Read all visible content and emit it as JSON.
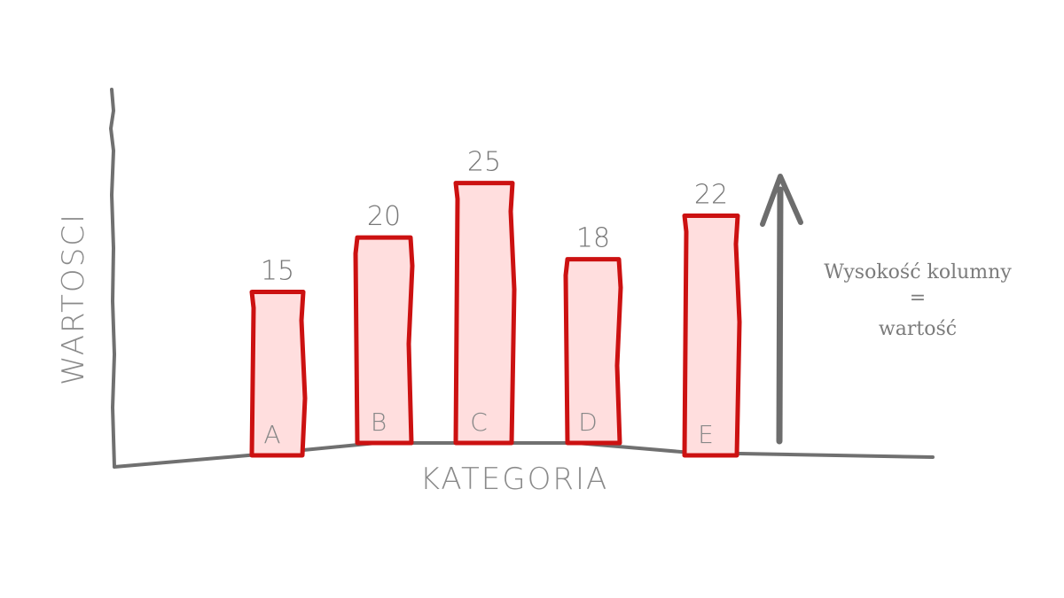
{
  "chart_data": {
    "type": "bar",
    "categories": [
      "A",
      "B",
      "C",
      "D",
      "E"
    ],
    "values": [
      15,
      20,
      25,
      18,
      22
    ],
    "title": "",
    "xlabel": "KATEGORIA",
    "ylabel": "WARTOSCI",
    "ylim": [
      0,
      27
    ],
    "grid": false,
    "legend": "none"
  },
  "annotation": {
    "line1": "Wysokość kolumny",
    "line2": "=",
    "line3": "wartość"
  },
  "colors": {
    "bar_fill": "#ffdede",
    "bar_stroke": "#cc1111",
    "axis": "#707070",
    "text": "#808080"
  }
}
